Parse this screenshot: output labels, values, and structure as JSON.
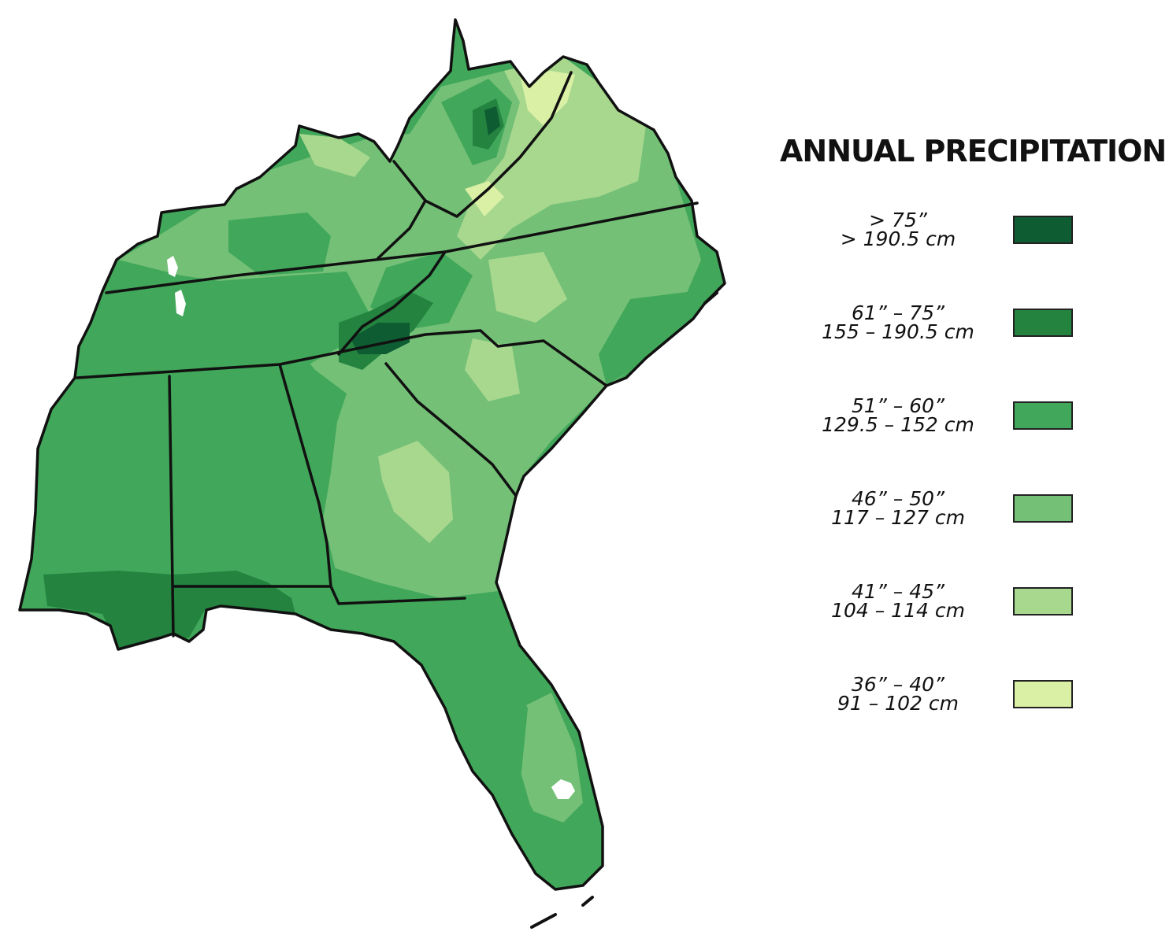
{
  "legend": {
    "title": "ANNUAL PRECIPITATION",
    "items": [
      {
        "inches": "> 75”",
        "cm": "> 190.5 cm",
        "color": "#0e5c32"
      },
      {
        "inches": "61” – 75”",
        "cm": "155 – 190.5 cm",
        "color": "#23833f"
      },
      {
        "inches": "51” – 60”",
        "cm": "129.5 – 152 cm",
        "color": "#41a75a"
      },
      {
        "inches": "46” – 50”",
        "cm": "117 – 127 cm",
        "color": "#74c077"
      },
      {
        "inches": "41” – 45”",
        "cm": "104 – 114 cm",
        "color": "#a8d88e"
      },
      {
        "inches": "36” – 40”",
        "cm": "91 – 102 cm",
        "color": "#d9f0a5"
      }
    ]
  }
}
